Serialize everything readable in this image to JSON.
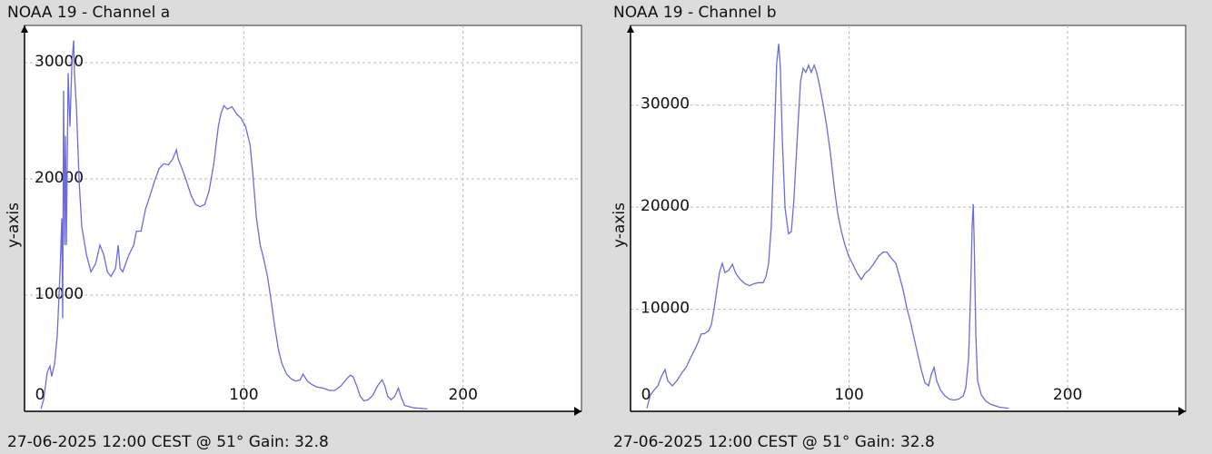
{
  "chart_data": [
    {
      "type": "line",
      "title": "NOAA 19 - Channel a",
      "ylabel": "y-axis",
      "footer": "27-06-2025 12:00 CEST @ 51° Gain: 32.8",
      "color": "#6b6bdc",
      "grid": true,
      "xlim": [
        0,
        254
      ],
      "ylim": [
        0,
        33200
      ],
      "xticks": [
        0,
        100,
        200
      ],
      "yticks": [
        10000,
        20000,
        30000
      ],
      "x": [
        7.5,
        8.7,
        10.4,
        11.6,
        12.4,
        13.7,
        14.9,
        16.2,
        17,
        17.4,
        17.8,
        18.3,
        18.7,
        19.1,
        19.9,
        20.7,
        21.6,
        22.4,
        22.8,
        23.7,
        24.9,
        26.1,
        28.2,
        30.3,
        32.4,
        34.4,
        36.1,
        37.8,
        39.4,
        41.5,
        42.7,
        43.6,
        44.8,
        46.1,
        47.7,
        49.8,
        51,
        53.1,
        55.2,
        57.3,
        59.3,
        61.4,
        63.5,
        65.6,
        67.6,
        69.3,
        70.1,
        71.8,
        73.9,
        75.9,
        78,
        80.1,
        82.2,
        84.2,
        86.3,
        88.4,
        89.6,
        90.9,
        92.5,
        94.6,
        96.7,
        98.8,
        100.8,
        102.9,
        104.1,
        105.8,
        107.5,
        109.1,
        110.8,
        112.4,
        114.1,
        115.8,
        117.4,
        119.5,
        121.6,
        123.7,
        125.7,
        127,
        129,
        131.1,
        133.2,
        136.1,
        139,
        141.5,
        144.4,
        146.5,
        148.5,
        149.8,
        151.5,
        153.1,
        154.8,
        156.8,
        158.9,
        161,
        163.1,
        164.3,
        165.6,
        167.2,
        168.9,
        170.5,
        171.8,
        173.4,
        177.6,
        183.8
      ],
      "values": [
        200,
        1000,
        3400,
        3900,
        3000,
        4100,
        6500,
        12000,
        16600,
        8000,
        27600,
        14300,
        23700,
        14300,
        29100,
        24500,
        29900,
        31900,
        29100,
        26000,
        19800,
        15900,
        13500,
        12000,
        12700,
        14300,
        13500,
        12000,
        11600,
        12300,
        14300,
        12300,
        12000,
        12700,
        13500,
        14300,
        15500,
        15500,
        17400,
        18600,
        19800,
        20900,
        21300,
        21200,
        21700,
        22500,
        21700,
        20900,
        19800,
        18600,
        17800,
        17600,
        17800,
        19000,
        21300,
        24500,
        25600,
        26300,
        26000,
        26200,
        25600,
        25200,
        24500,
        22900,
        20500,
        16600,
        14300,
        13100,
        11600,
        9600,
        7300,
        5300,
        4100,
        3200,
        2800,
        2600,
        2700,
        3200,
        2600,
        2300,
        2100,
        2000,
        1800,
        1800,
        2200,
        2700,
        3100,
        3000,
        2200,
        1300,
        900,
        1000,
        1400,
        2200,
        2700,
        2200,
        1300,
        1000,
        1300,
        2000,
        1200,
        500,
        300,
        200
      ]
    },
    {
      "type": "line",
      "title": "NOAA 19 - Channel b",
      "ylabel": "y-axis",
      "footer": "27-06-2025 12:00 CEST @ 51° Gain: 32.8",
      "color": "#6b6bdc",
      "grid": true,
      "xlim": [
        0,
        254
      ],
      "ylim": [
        0,
        37800
      ],
      "xticks": [
        0,
        100,
        200
      ],
      "yticks": [
        10000,
        20000,
        30000
      ],
      "x": [
        7.5,
        9.1,
        10.8,
        12.5,
        14.1,
        15.8,
        17,
        19.1,
        21.2,
        23.3,
        25.4,
        27.4,
        29.5,
        30.8,
        32.4,
        33.7,
        35.8,
        37,
        38.3,
        39.5,
        40.7,
        42,
        43.2,
        44.9,
        46.6,
        48.2,
        50.3,
        52.4,
        54.5,
        56.5,
        58.6,
        60.7,
        62,
        63.2,
        64.4,
        65.7,
        66.9,
        67.8,
        68.6,
        69.4,
        70.7,
        72.3,
        73.6,
        74.8,
        76.1,
        77.8,
        79,
        80.2,
        81.5,
        82.7,
        84,
        85.2,
        86.5,
        88.1,
        89.8,
        91.5,
        93.1,
        94.8,
        96.5,
        98.1,
        99.8,
        101.5,
        103.5,
        105.6,
        107.3,
        109.4,
        111.4,
        113.5,
        115.6,
        117.3,
        119.3,
        121.4,
        123.1,
        124.7,
        126.4,
        128.1,
        129.7,
        131.4,
        133.1,
        134.7,
        136.4,
        137.6,
        138.9,
        140.1,
        141.8,
        143.9,
        145.9,
        148,
        150.1,
        152.2,
        153.4,
        154.7,
        155.5,
        156.3,
        156.8,
        157.2,
        158,
        158.8,
        160.5,
        162.6,
        164.7,
        168.8,
        173
      ],
      "values": [
        300,
        1600,
        2100,
        2500,
        3400,
        4100,
        3000,
        2500,
        3000,
        3700,
        4300,
        5200,
        6100,
        6700,
        7600,
        7600,
        7900,
        8500,
        10100,
        11900,
        13600,
        14500,
        13600,
        13800,
        14400,
        13500,
        12900,
        12500,
        12300,
        12500,
        12600,
        12600,
        13200,
        14500,
        18100,
        26100,
        34100,
        36000,
        33600,
        27000,
        19900,
        17400,
        17600,
        20800,
        26100,
        32300,
        33600,
        33200,
        33900,
        33200,
        33900,
        33200,
        31900,
        30100,
        27900,
        25200,
        22100,
        19400,
        17600,
        16300,
        15200,
        14500,
        13600,
        12900,
        13500,
        13900,
        14500,
        15200,
        15600,
        15600,
        15000,
        14500,
        13200,
        11900,
        10100,
        8800,
        7200,
        5600,
        4000,
        2800,
        2500,
        3600,
        4300,
        3000,
        2100,
        1500,
        1200,
        1100,
        1200,
        1500,
        2300,
        5200,
        11000,
        18100,
        20300,
        17200,
        7400,
        3000,
        1600,
        1000,
        700,
        400,
        300
      ]
    }
  ]
}
